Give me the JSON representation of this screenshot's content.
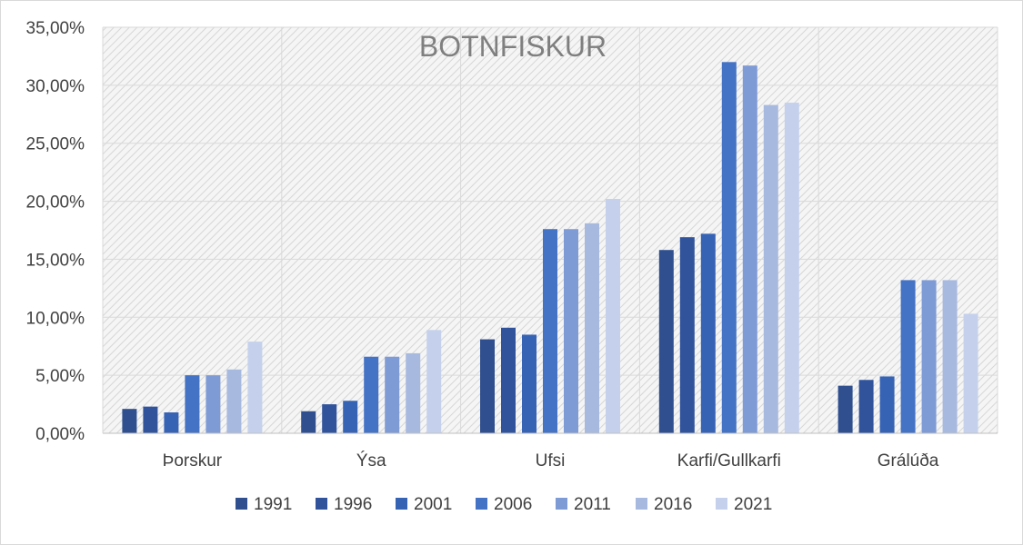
{
  "chart_data": {
    "type": "bar",
    "title": "BOTNFISKUR",
    "xlabel": "",
    "ylabel": "",
    "categories": [
      "Þorskur",
      "Ýsa",
      "Ufsi",
      "Karfi/Gullkarfi",
      "Grálúða"
    ],
    "ylim": [
      0,
      35
    ],
    "yticks": [
      "0,00%",
      "5,00%",
      "10,00%",
      "15,00%",
      "20,00%",
      "25,00%",
      "30,00%",
      "35,00%"
    ],
    "grid": true,
    "legend_position": "bottom",
    "series": [
      {
        "name": "1991",
        "color": "#2f4f8f",
        "values": [
          2.1,
          1.9,
          8.1,
          15.8,
          4.1
        ]
      },
      {
        "name": "1996",
        "color": "#30539c",
        "values": [
          2.3,
          2.5,
          9.1,
          16.9,
          4.6
        ]
      },
      {
        "name": "2001",
        "color": "#3763b5",
        "values": [
          1.8,
          2.8,
          8.5,
          17.2,
          4.9
        ]
      },
      {
        "name": "2006",
        "color": "#4472c4",
        "values": [
          5.0,
          6.6,
          17.6,
          32.0,
          13.2
        ]
      },
      {
        "name": "2011",
        "color": "#7f9bd6",
        "values": [
          5.0,
          6.6,
          17.6,
          31.7,
          13.2
        ]
      },
      {
        "name": "2016",
        "color": "#a8b9e0",
        "values": [
          5.5,
          6.9,
          18.1,
          28.3,
          13.2
        ]
      },
      {
        "name": "2021",
        "color": "#c5d1ec",
        "values": [
          7.9,
          8.9,
          20.2,
          28.5,
          10.3
        ]
      }
    ]
  }
}
